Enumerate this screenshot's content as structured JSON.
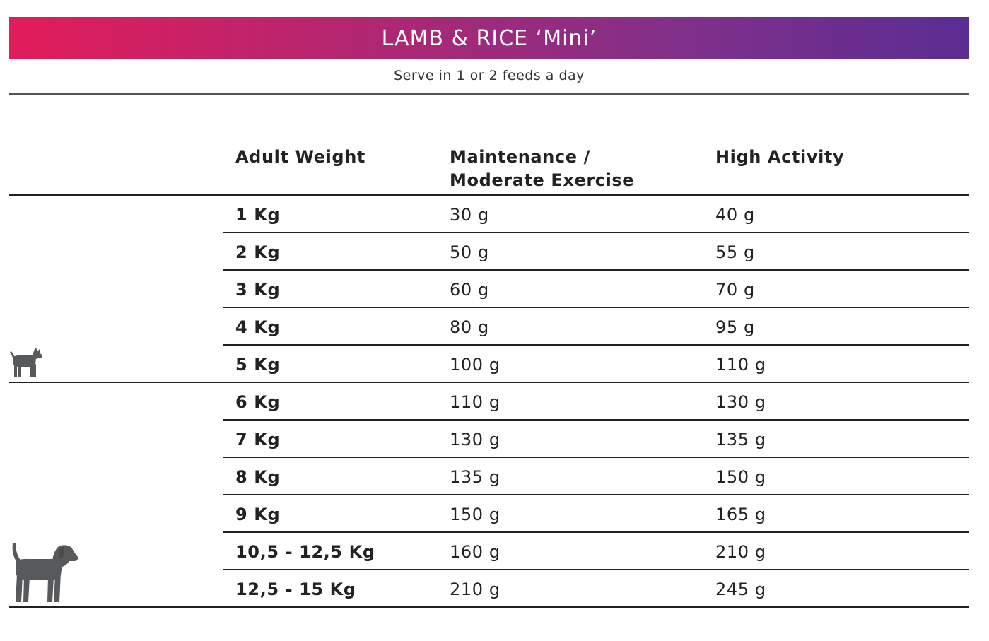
{
  "banner": {
    "title": "LAMB & RICE ‘Mini’"
  },
  "subtitle": "Serve in 1 or 2 feeds a day",
  "columns": {
    "weight": "Adult Weight",
    "maintenance": "Maintenance / Moderate Exercise",
    "maintenance_line1": "Maintenance /",
    "maintenance_line2": "Moderate Exercise",
    "high": "High Activity"
  },
  "rows": [
    {
      "weight": "1 Kg",
      "maintenance": "30 g",
      "high": "40 g"
    },
    {
      "weight": "2 Kg",
      "maintenance": "50 g",
      "high": "55 g"
    },
    {
      "weight": "3 Kg",
      "maintenance": "60 g",
      "high": "70 g"
    },
    {
      "weight": "4 Kg",
      "maintenance": "80 g",
      "high": "95 g"
    },
    {
      "weight": "5 Kg",
      "maintenance": "100 g",
      "high": "110 g"
    },
    {
      "weight": "6 Kg",
      "maintenance": "110 g",
      "high": "130 g"
    },
    {
      "weight": "7 Kg",
      "maintenance": "130 g",
      "high": "135 g"
    },
    {
      "weight": "8 Kg",
      "maintenance": "135 g",
      "high": "150 g"
    },
    {
      "weight": "9 Kg",
      "maintenance": "150 g",
      "high": "165 g"
    },
    {
      "weight": "10,5 - 12,5 Kg",
      "maintenance": "160 g",
      "high": "210 g"
    },
    {
      "weight": "12,5 - 15 Kg",
      "maintenance": "210 g",
      "high": "245 g"
    }
  ],
  "icons": {
    "small_dog": "small-dog-icon",
    "medium_dog": "medium-dog-icon",
    "icon_color": "#58595b"
  },
  "colors": {
    "banner_gradient": [
      "#e21c5a",
      "#b42670",
      "#80308a",
      "#5b2d92"
    ],
    "banner_text": "#ffffff",
    "rules": "#222222"
  }
}
